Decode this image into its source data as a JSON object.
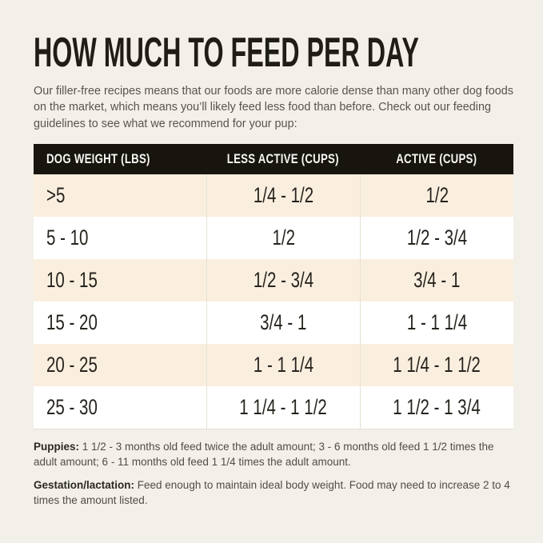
{
  "title": "HOW MUCH TO FEED PER DAY",
  "intro": "Our filler-free recipes means that our foods are more calorie dense than many other dog foods on the market, which means you’ll likely feed less food than before. Check out our feeding guidelines to see what we recommend for your pup:",
  "table": {
    "columns": [
      "DOG WEIGHT (LBS)",
      "LESS ACTIVE (CUPS)",
      "ACTIVE (CUPS)"
    ],
    "rows": [
      [
        ">5",
        "1/4 - 1/2",
        "1/2"
      ],
      [
        "5 - 10",
        "1/2",
        "1/2 - 3/4"
      ],
      [
        "10 - 15",
        "1/2 - 3/4",
        "3/4 - 1"
      ],
      [
        "15 - 20",
        "3/4 - 1",
        "1 - 1 1/4"
      ],
      [
        "20 - 25",
        "1 - 1 1/4",
        "1 1/4 - 1 1/2"
      ],
      [
        "25 - 30",
        "1 1/4 - 1 1/2",
        "1 1/2 - 1 3/4"
      ]
    ]
  },
  "notes": {
    "puppies": {
      "label": "Puppies:",
      "text": " 1 1/2 - 3 months old feed twice the adult amount; 3 - 6 months old feed 1 1/2 times the adult amount; 6 - 11 months old feed 1 1/4 times the adult amount."
    },
    "gestation": {
      "label": "Gestation/lactation:",
      "text": " Feed enough to maintain ideal body weight. Food may need to increase 2 to 4 times the amount listed."
    }
  },
  "colors": {
    "page_bg": "#f3f0e9",
    "header_bg": "#18150f",
    "header_text": "#f7f5f2",
    "row_bg": "#ffffff",
    "row_alt_bg": "#faefdf",
    "divider": "#e6e1d6",
    "title_text": "#201d19",
    "body_text": "#57544e",
    "cell_text": "#26231d"
  }
}
